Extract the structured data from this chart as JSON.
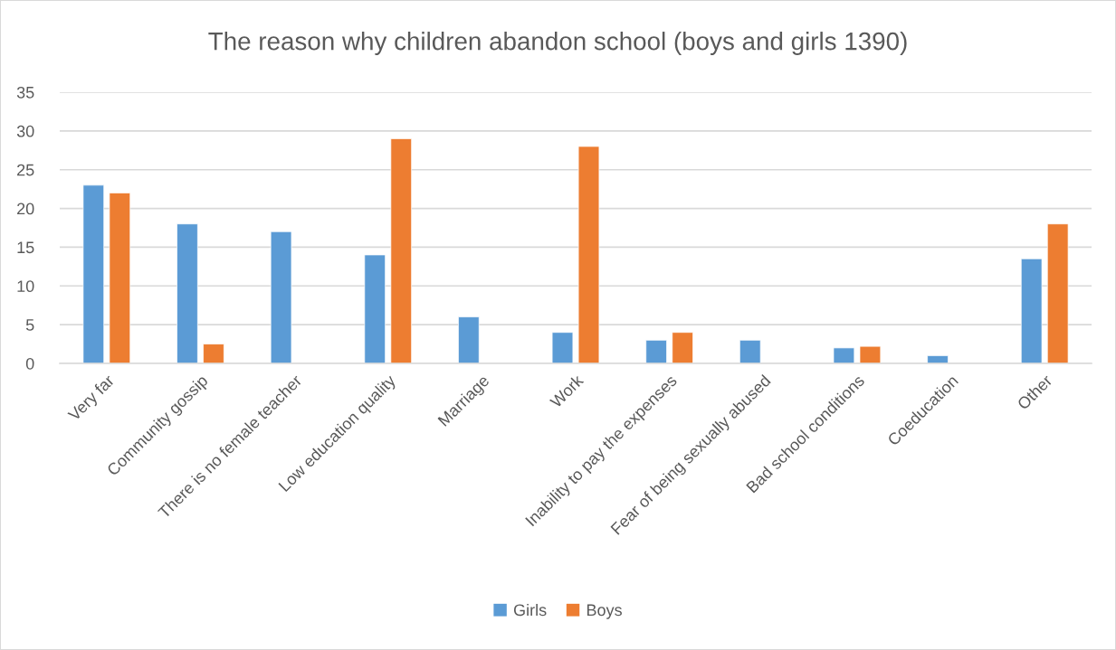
{
  "chart_data": {
    "type": "bar",
    "title": "The reason why children abandon school (boys and girls 1390)",
    "categories": [
      "Very far",
      "Community gossip",
      "There is no female teacher",
      "Low education quality",
      "Marriage",
      "Work",
      "Inability to pay the expenses",
      "Fear of being sexually abused",
      "Bad school conditions",
      "Coeducation",
      "Other"
    ],
    "series": [
      {
        "name": "Girls",
        "color": "#5b9bd5",
        "values": [
          23,
          18,
          17,
          14,
          6,
          4,
          3,
          3,
          2,
          1,
          13.5
        ]
      },
      {
        "name": "Boys",
        "color": "#ed7d31",
        "values": [
          22,
          2.5,
          null,
          29,
          null,
          28,
          4,
          null,
          2.2,
          null,
          18
        ]
      }
    ],
    "ylim": [
      0,
      35
    ],
    "yticks": [
      0,
      5,
      10,
      15,
      20,
      25,
      30,
      35
    ],
    "grid": "y",
    "legend": "bottom"
  }
}
